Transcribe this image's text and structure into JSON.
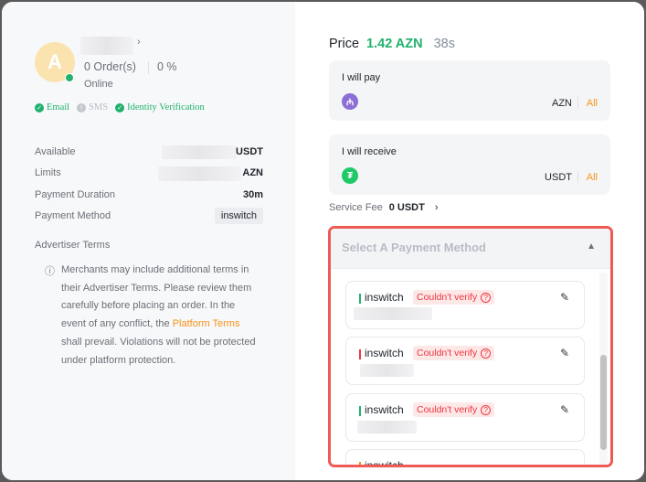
{
  "advertiser": {
    "avatar_letter": "A",
    "orders": "0 Order(s)",
    "completion": "0 %",
    "status": "Online",
    "verifications": [
      {
        "label": "Email",
        "verified": true
      },
      {
        "label": "SMS",
        "verified": false
      },
      {
        "label": "Identity Verification",
        "verified": true
      }
    ]
  },
  "details": {
    "available_label": "Available",
    "available_unit": "USDT",
    "limits_label": "Limits",
    "limits_unit": "AZN",
    "duration_label": "Payment Duration",
    "duration_value": "30m",
    "method_label": "Payment Method",
    "method_value": "inswitch"
  },
  "terms": {
    "title": "Advertiser Terms",
    "text_before": "Merchants may include additional terms in their Advertiser Terms. Please review them carefully before placing an order. In the event of any conflict, the ",
    "link": "Platform Terms",
    "text_after": " shall prevail. Violations will not be protected under platform protection."
  },
  "price": {
    "label": "Price",
    "value": "1.42 AZN",
    "timer": "38s"
  },
  "pay": {
    "label": "I will pay",
    "currency": "AZN",
    "all": "All",
    "icon": "azn-coin-icon"
  },
  "receive": {
    "label": "I will receive",
    "currency": "USDT",
    "all": "All",
    "icon": "tether-icon"
  },
  "fee": {
    "label": "Service Fee",
    "value": "0 USDT"
  },
  "dropdown": {
    "placeholder": "Select A Payment Method",
    "items": [
      {
        "name": "inswitch",
        "status": "Couldn't verify",
        "color": "#20b26c"
      },
      {
        "name": "inswitch",
        "status": "Couldn't verify",
        "color": "#f0353f"
      },
      {
        "name": "inswitch",
        "status": "Couldn't verify",
        "color": "#20b26c"
      },
      {
        "name": "inswitch",
        "status": "",
        "color": "#f7931a"
      }
    ]
  },
  "colors": {
    "accent_green": "#20b26c",
    "link_orange": "#f7931a",
    "error_red": "#f0353f",
    "highlight": "#ee5a55"
  }
}
